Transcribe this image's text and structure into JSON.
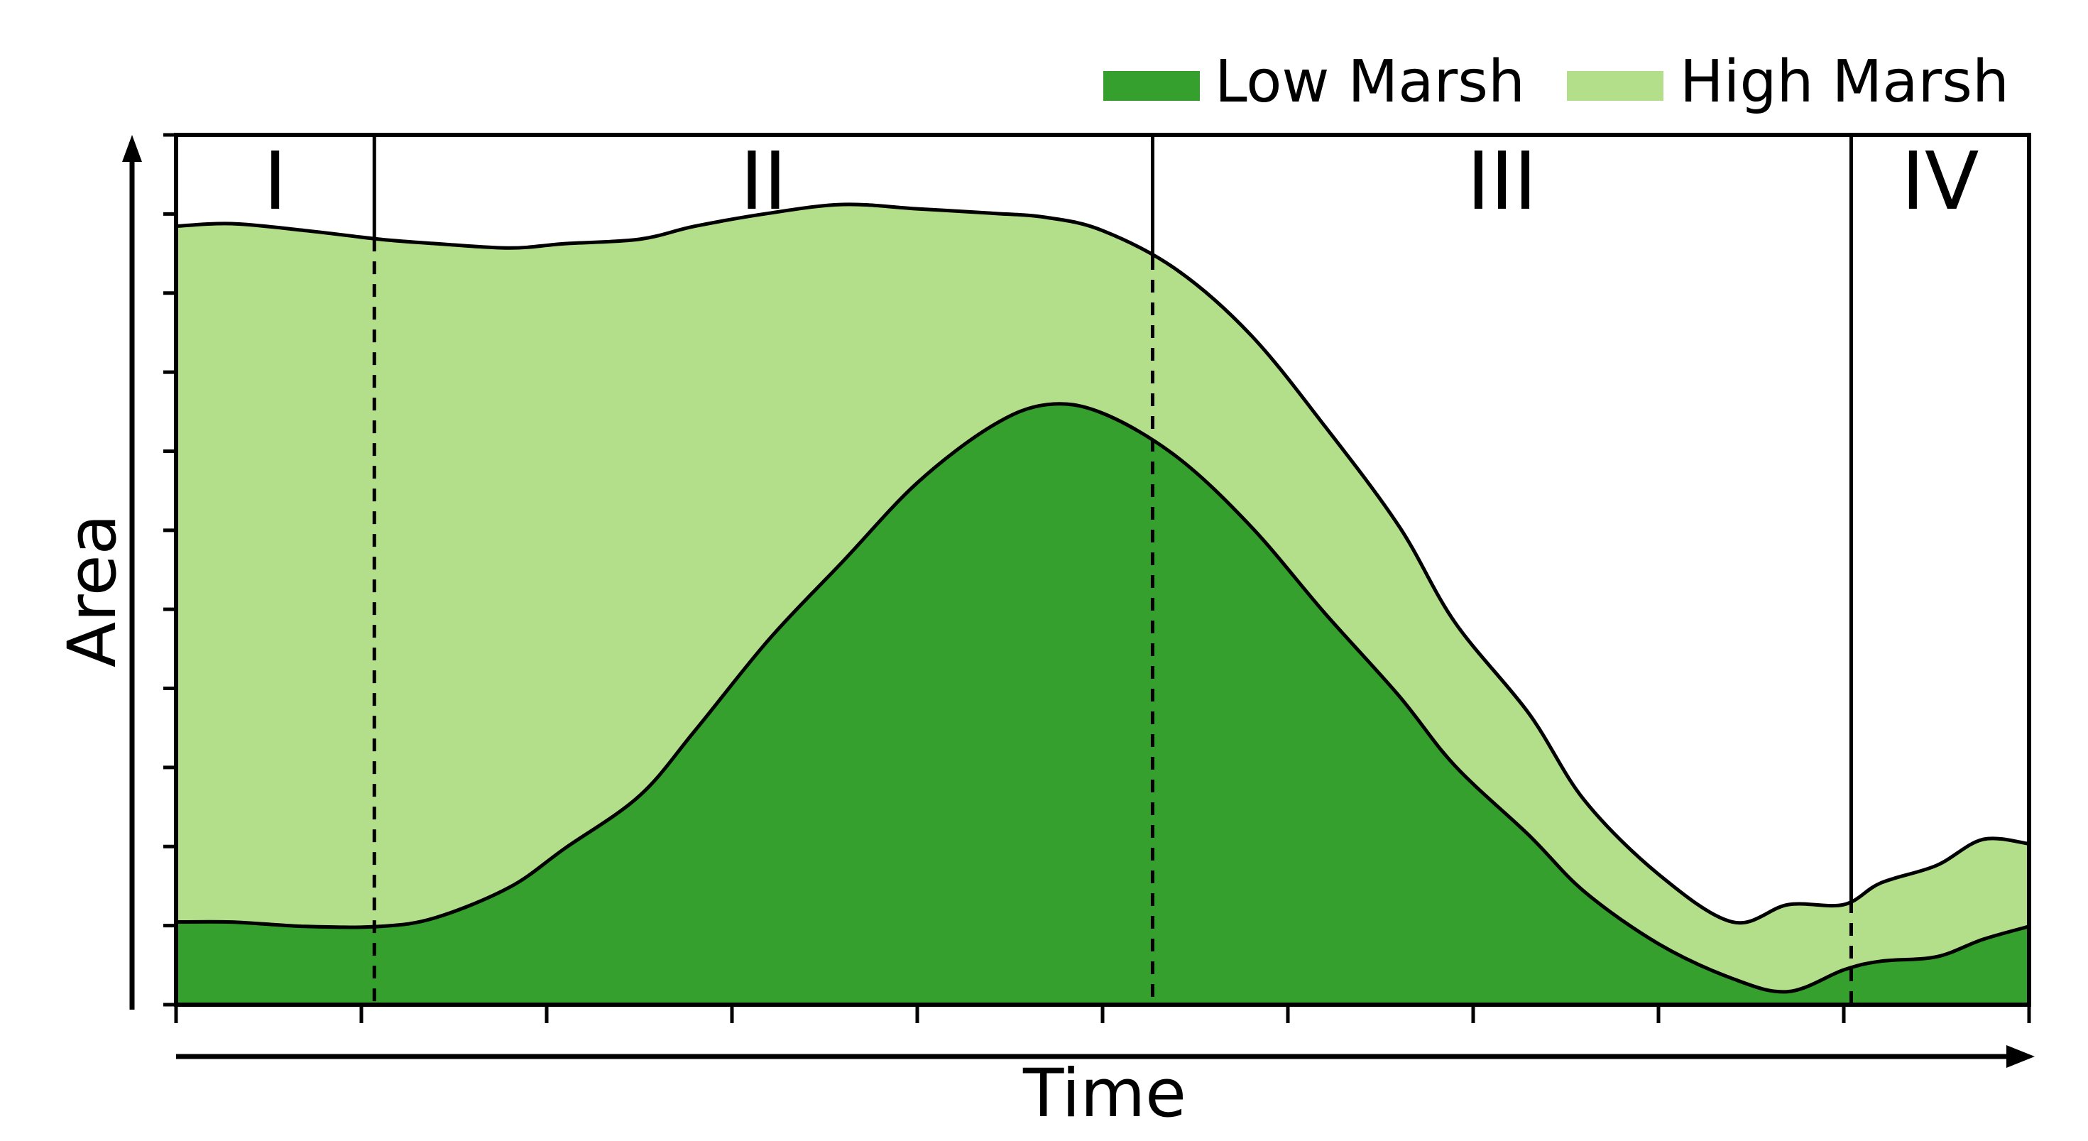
{
  "chart_data": {
    "type": "area",
    "stacked": true,
    "title": "",
    "xlabel": "Time",
    "ylabel": "Area",
    "xlim": [
      0,
      100
    ],
    "ylim": [
      0,
      100
    ],
    "x_tick_count": 10,
    "y_tick_count": 12,
    "legend_position": "top-right",
    "series": [
      {
        "name": "Low Marsh",
        "color": "#35a02d",
        "x": [
          0,
          3,
          7,
          11,
          14,
          18,
          21,
          25,
          28,
          32,
          36,
          40,
          44,
          47,
          50,
          54,
          58,
          62,
          66,
          69,
          73,
          76,
          80,
          84,
          87,
          90,
          92,
          95,
          97.5,
          100
        ],
        "values": [
          9.5,
          9.5,
          9.0,
          9.0,
          10.0,
          13.5,
          18.0,
          24.0,
          31.5,
          42.0,
          51.0,
          60.0,
          66.5,
          69.0,
          68.0,
          63.0,
          55.0,
          45.0,
          35.5,
          27.5,
          19.5,
          13.0,
          7.0,
          3.0,
          1.5,
          4.0,
          5.0,
          5.5,
          7.5,
          9.0
        ]
      },
      {
        "name": "High Marsh",
        "color": "#b3df8b",
        "x": [
          0,
          3,
          7,
          11,
          14,
          18,
          21,
          25,
          28,
          32,
          36,
          40,
          44,
          47,
          50,
          54,
          58,
          62,
          66,
          69,
          73,
          76,
          80,
          84,
          87,
          90,
          92,
          95,
          97.5,
          100
        ],
        "values": [
          80.0,
          80.3,
          80.0,
          79.0,
          77.5,
          73.5,
          69.5,
          64.0,
          58.0,
          49.0,
          41.0,
          31.5,
          24.5,
          21.5,
          21.0,
          21.5,
          22.0,
          21.5,
          19.5,
          16.5,
          14.0,
          10.5,
          8.0,
          6.5,
          10.0,
          7.5,
          9.0,
          10.5,
          11.5,
          9.5
        ]
      }
    ],
    "phases": [
      {
        "label": "I",
        "start": 0,
        "end": 10.7
      },
      {
        "label": "II",
        "start": 10.7,
        "end": 52.7
      },
      {
        "label": "III",
        "start": 52.7,
        "end": 90.4
      },
      {
        "label": "IV",
        "start": 90.4,
        "end": 100
      }
    ],
    "legend": [
      {
        "label": "Low Marsh",
        "color": "#35a02d"
      },
      {
        "label": "High Marsh",
        "color": "#b3df8b"
      }
    ]
  }
}
